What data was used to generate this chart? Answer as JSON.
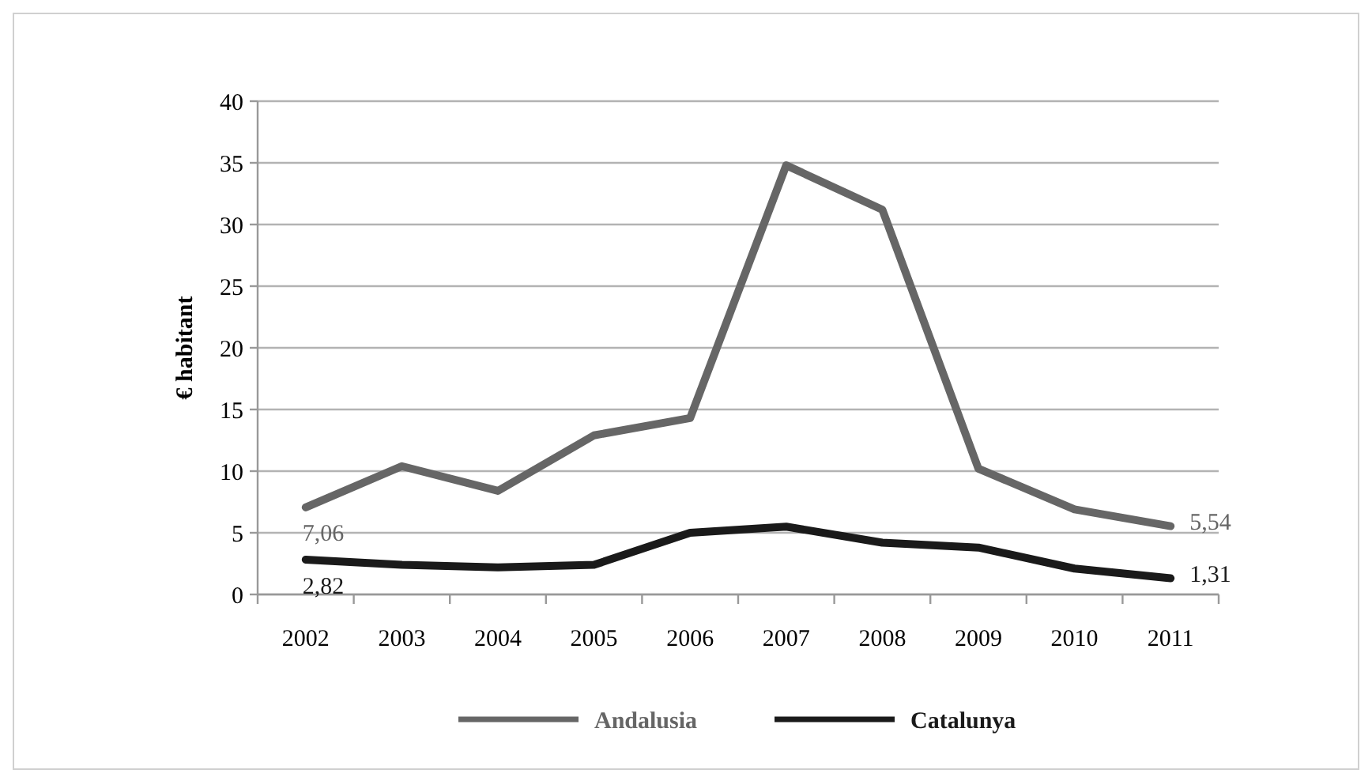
{
  "chart_data": {
    "type": "line",
    "ylabel": "€ habitant",
    "categories": [
      "2002",
      "2003",
      "2004",
      "2005",
      "2006",
      "2007",
      "2008",
      "2009",
      "2010",
      "2011"
    ],
    "series": [
      {
        "name": "Andalusia",
        "color": "#666666",
        "values": [
          7.06,
          10.4,
          8.4,
          12.9,
          14.3,
          34.8,
          31.2,
          10.2,
          6.9,
          5.54
        ],
        "value_labels": [
          "7,06",
          null,
          null,
          null,
          null,
          null,
          null,
          null,
          null,
          "5,54"
        ]
      },
      {
        "name": "Catalunya",
        "color": "#1a1a1a",
        "values": [
          2.82,
          2.4,
          2.2,
          2.4,
          5.0,
          5.5,
          4.2,
          3.8,
          2.1,
          1.31
        ],
        "value_labels": [
          "2,82",
          null,
          null,
          null,
          null,
          null,
          null,
          null,
          null,
          "1,31"
        ]
      }
    ],
    "ylim": [
      0,
      40
    ],
    "yticks": [
      0,
      5,
      10,
      15,
      20,
      25,
      30,
      35,
      40
    ],
    "grid": "y",
    "legend": "bottom",
    "line_style": "solid"
  }
}
